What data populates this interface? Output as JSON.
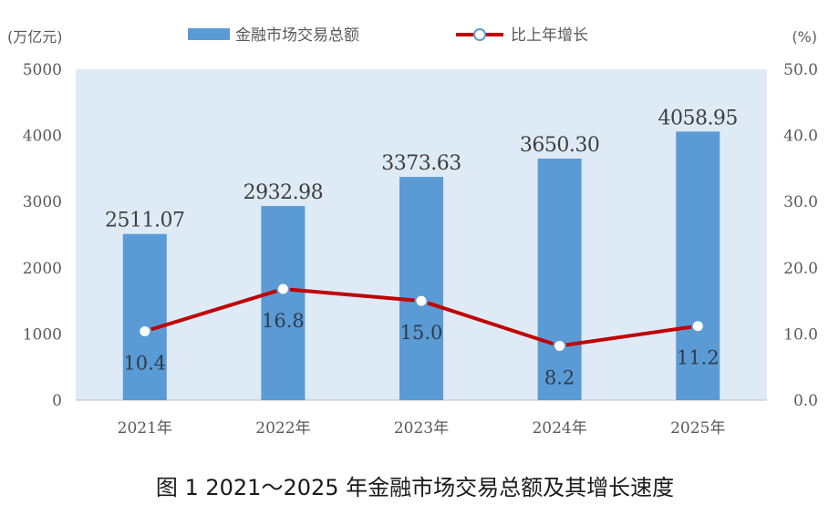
{
  "chart_data": {
    "type": "bar",
    "categories": [
      "2021年",
      "2022年",
      "2023年",
      "2024年",
      "2025年"
    ],
    "series": [
      {
        "name": "金融市场交易总额",
        "type": "bar",
        "axis": "left",
        "values": [
          2511.07,
          2932.98,
          3373.63,
          3650.3,
          4058.95
        ],
        "labels": [
          "2511.07",
          "2932.98",
          "3373.63",
          "3650.30",
          "4058.95"
        ],
        "color": "#5b9bd5"
      },
      {
        "name": "比上年增长",
        "type": "line",
        "axis": "right",
        "values": [
          10.4,
          16.8,
          15.0,
          8.2,
          11.2
        ],
        "labels": [
          "10.4",
          "16.8",
          "15.0",
          "8.2",
          "11.2"
        ],
        "color": "#c00000"
      }
    ],
    "left_axis": {
      "unit": "(万亿元)",
      "ylim": [
        0,
        5000
      ],
      "ticks": [
        "0",
        "1000",
        "2000",
        "3000",
        "4000",
        "5000"
      ]
    },
    "right_axis": {
      "unit": "(%)",
      "ylim": [
        0,
        50
      ],
      "ticks": [
        "0.0",
        "10.0",
        "20.0",
        "30.0",
        "40.0",
        "50.0"
      ]
    },
    "legend_position": "top",
    "grid": false,
    "plot_background": "#deeaf6",
    "caption": "图 1 2021～2025 年金融市场交易总额及其增长速度"
  }
}
